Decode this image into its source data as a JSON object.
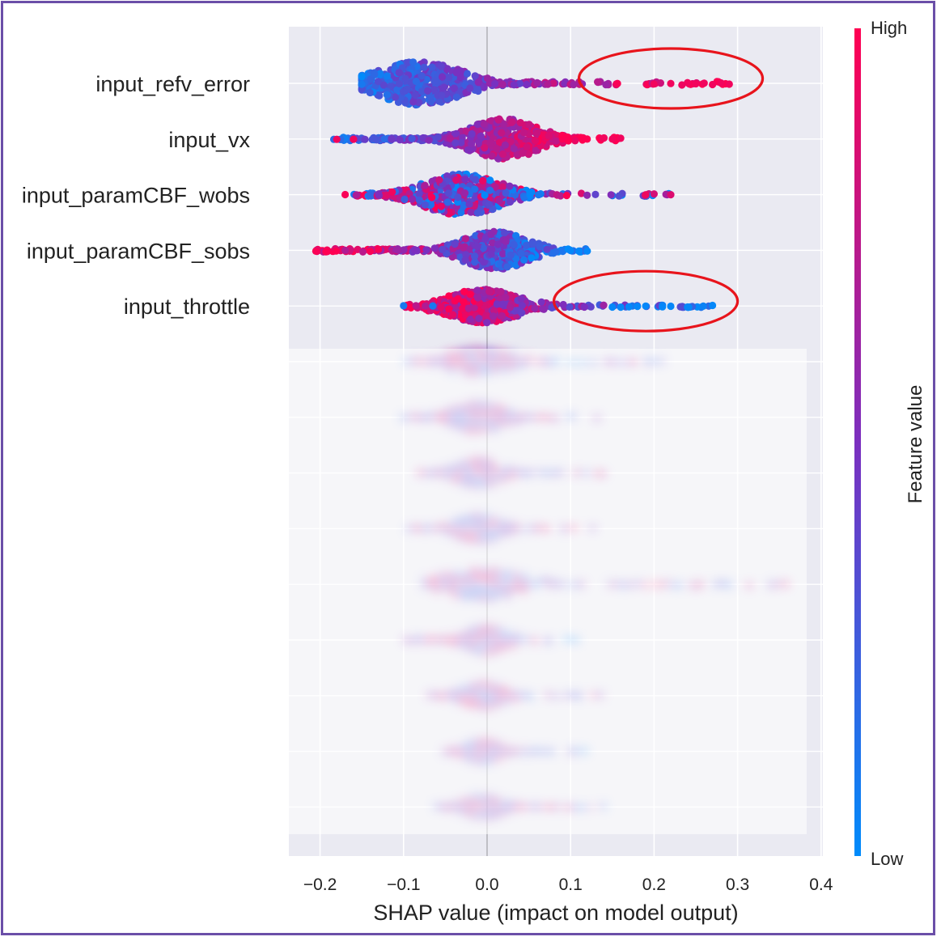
{
  "chart_data": {
    "type": "scatter",
    "subtype": "shap-beeswarm",
    "xlabel": "SHAP value (impact on model output)",
    "xlim": [
      -0.235,
      0.41
    ],
    "xticks": [
      -0.2,
      -0.1,
      0.0,
      0.1,
      0.2,
      0.3,
      0.4
    ],
    "xtick_labels": [
      "−0.2",
      "−0.1",
      "0.0",
      "0.1",
      "0.2",
      "0.3",
      "0.4"
    ],
    "grid": true,
    "background": "#eaeaf2",
    "colorbar": {
      "title": "Feature value",
      "high_label": "High",
      "low_label": "Low",
      "high_color": "#ff0052",
      "mid_color": "#7b2fbf",
      "low_color": "#008bfb",
      "placement": "right"
    },
    "features": [
      {
        "name": "input_refv_error",
        "visible": true,
        "min": -0.15,
        "max": 0.29,
        "center": -0.08,
        "spread": 0.07,
        "width": 0.9,
        "high_side": "right",
        "outliers": [
          0.2,
          0.22,
          0.24,
          0.25,
          0.26,
          0.27,
          0.28,
          0.29
        ]
      },
      {
        "name": "input_vx",
        "visible": true,
        "min": -0.185,
        "max": 0.16,
        "center": 0.02,
        "spread": 0.07,
        "width": 0.85,
        "high_side": "right",
        "outliers": [
          -0.18,
          -0.16,
          0.14,
          0.15,
          0.16
        ]
      },
      {
        "name": "input_paramCBF_wobs",
        "visible": true,
        "min": -0.17,
        "max": 0.225,
        "center": -0.03,
        "spread": 0.08,
        "width": 0.85,
        "high_side": "mixed",
        "outliers": [
          -0.17,
          -0.13,
          0.19,
          0.2,
          0.22
        ]
      },
      {
        "name": "input_paramCBF_sobs",
        "visible": true,
        "min": -0.205,
        "max": 0.12,
        "center": 0.01,
        "spread": 0.06,
        "width": 0.8,
        "high_side": "left",
        "outliers": [
          -0.205,
          -0.14,
          -0.13,
          0.1,
          0.11,
          0.12
        ]
      },
      {
        "name": "input_throttle",
        "visible": true,
        "min": -0.1,
        "max": 0.27,
        "center": -0.005,
        "spread": 0.05,
        "width": 0.7,
        "high_side": "left",
        "outliers": [
          -0.1,
          -0.065,
          0.15,
          0.16,
          0.17,
          0.18,
          0.19,
          0.21,
          0.22,
          0.24,
          0.27
        ]
      },
      {
        "name": "",
        "visible": false,
        "min": -0.11,
        "max": 0.22,
        "center": -0.01,
        "spread": 0.04,
        "width": 0.5
      },
      {
        "name": "",
        "visible": false,
        "min": -0.1,
        "max": 0.16,
        "center": -0.01,
        "spread": 0.04,
        "width": 0.6
      },
      {
        "name": "",
        "visible": false,
        "min": -0.08,
        "max": 0.14,
        "center": -0.01,
        "spread": 0.04,
        "width": 0.55
      },
      {
        "name": "",
        "visible": false,
        "min": -0.095,
        "max": 0.13,
        "center": -0.01,
        "spread": 0.04,
        "width": 0.55
      },
      {
        "name": "",
        "visible": false,
        "min": -0.075,
        "max": 0.37,
        "center": -0.005,
        "spread": 0.04,
        "width": 0.6
      },
      {
        "name": "",
        "visible": false,
        "min": -0.1,
        "max": 0.11,
        "center": 0.0,
        "spread": 0.035,
        "width": 0.55
      },
      {
        "name": "",
        "visible": false,
        "min": -0.07,
        "max": 0.14,
        "center": -0.005,
        "spread": 0.035,
        "width": 0.5
      },
      {
        "name": "",
        "visible": false,
        "min": -0.05,
        "max": 0.12,
        "center": -0.005,
        "spread": 0.03,
        "width": 0.45
      },
      {
        "name": "",
        "visible": false,
        "min": -0.06,
        "max": 0.14,
        "center": -0.005,
        "spread": 0.03,
        "width": 0.45
      }
    ],
    "annotations": [
      {
        "type": "ellipse",
        "feature": "input_refv_error",
        "x_range": [
          0.11,
          0.33
        ],
        "color": "#e8141c"
      },
      {
        "type": "ellipse",
        "feature": "input_throttle",
        "x_range": [
          0.08,
          0.3
        ],
        "color": "#e8141c"
      }
    ]
  }
}
